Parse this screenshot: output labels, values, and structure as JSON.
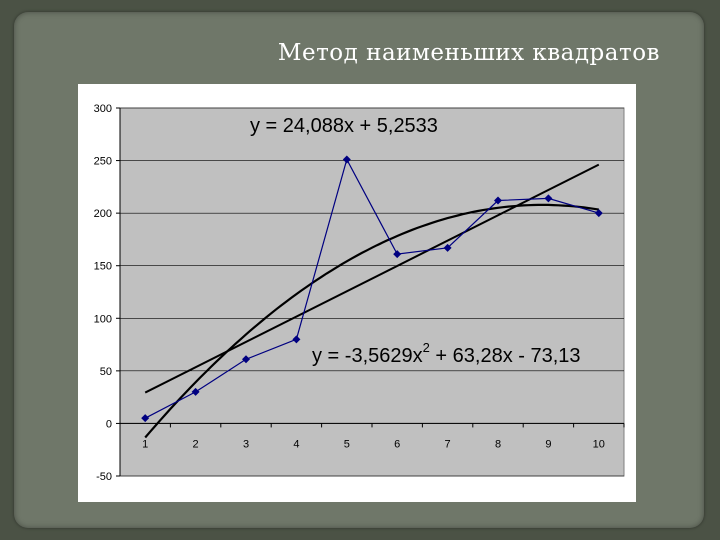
{
  "slide": {
    "title": "Метод наименьших квадратов"
  },
  "colors": {
    "background": "#4b5245",
    "slide": "#6f7769",
    "plot_area": "#c0c0c0",
    "series": "#000080",
    "trend": "#000000"
  },
  "chart_data": {
    "type": "line",
    "x": [
      1,
      2,
      3,
      4,
      5,
      6,
      7,
      8,
      9,
      10
    ],
    "series": [
      {
        "values": [
          5,
          30,
          61,
          80,
          251,
          161,
          167,
          212,
          214,
          200
        ],
        "marker": "diamond"
      }
    ],
    "trendlines": [
      {
        "kind": "linear",
        "equation": "y = 24,088x + 5,2533",
        "slope": 24.088,
        "intercept": 5.2533
      },
      {
        "kind": "polynomial",
        "equation_main": "y = -3,5629x",
        "equation_sup": "2",
        "equation_rest": " + 63,28x - 73,13",
        "a": -3.5629,
        "b": 63.28,
        "c": -73.13
      }
    ],
    "xlim": [
      1,
      10
    ],
    "ylim": [
      -50,
      300
    ],
    "yticks": [
      300,
      250,
      200,
      150,
      100,
      50,
      0,
      -50
    ],
    "xticks": [
      1,
      2,
      3,
      4,
      5,
      6,
      7,
      8,
      9,
      10
    ],
    "grid": "horizontal",
    "legend": "none"
  }
}
